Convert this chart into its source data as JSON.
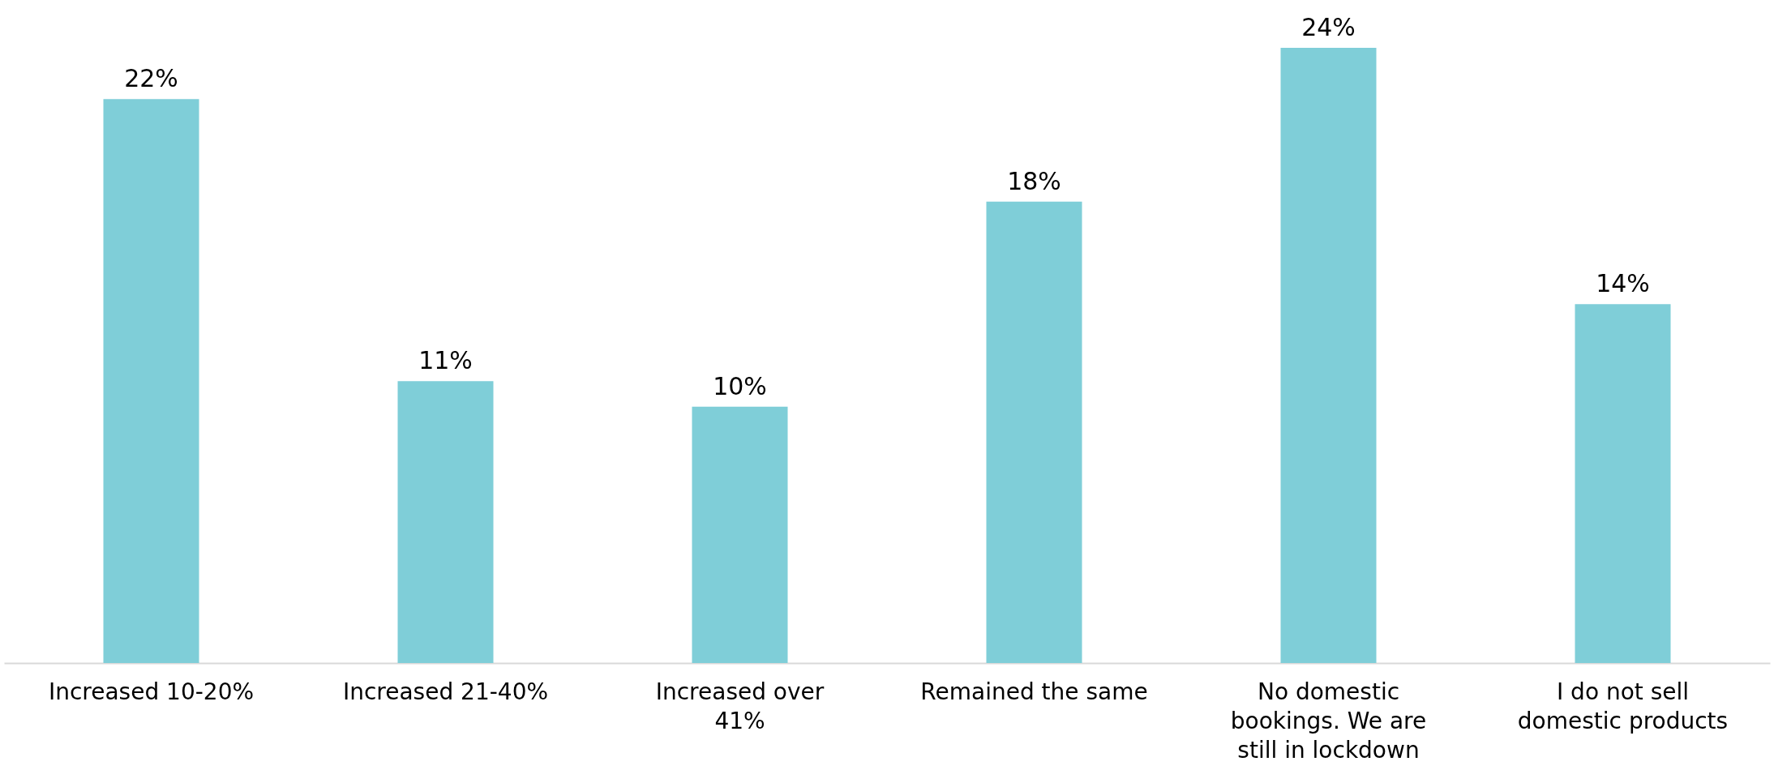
{
  "chart_data": {
    "type": "bar",
    "categories": [
      "Increased 10-20%",
      "Increased 21-40%",
      "Increased over 41%",
      "Remained the same",
      "No domestic bookings. We are still in lockdown",
      "I do not sell domestic products"
    ],
    "values": [
      22,
      11,
      10,
      18,
      24,
      14
    ],
    "color": "#7fced8",
    "value_labels": [
      "22%",
      "11%",
      "10%",
      "18%",
      "24%",
      "14%"
    ],
    "data_labels": false
  }
}
